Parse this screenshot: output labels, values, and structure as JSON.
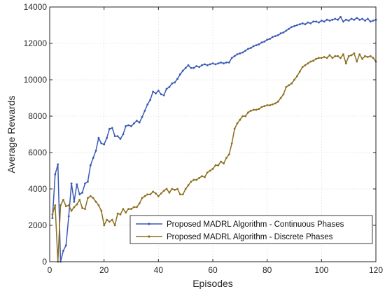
{
  "chart_data": {
    "type": "line",
    "title": "",
    "xlabel": "Episodes",
    "ylabel": "Average Rewards",
    "xlim": [
      0,
      120
    ],
    "ylim": [
      0,
      14000
    ],
    "xticks": [
      0,
      20,
      40,
      60,
      80,
      100,
      120
    ],
    "yticks": [
      0,
      2000,
      4000,
      6000,
      8000,
      10000,
      12000,
      14000
    ],
    "xtick_labels": [
      "0",
      "20",
      "40",
      "60",
      "80",
      "100",
      "120"
    ],
    "ytick_labels": [
      "0",
      "2000",
      "4000",
      "6000",
      "8000",
      "10000",
      "12000",
      "14000"
    ],
    "grid": true,
    "legend_position": "lower-right",
    "series": [
      {
        "name": "Proposed MADRL Algorithm - Continuous Phases",
        "color": "#3a59b4",
        "x": [
          1,
          2,
          3,
          4,
          5,
          6,
          7,
          8,
          9,
          10,
          11,
          12,
          13,
          14,
          15,
          16,
          17,
          18,
          19,
          20,
          21,
          22,
          23,
          24,
          25,
          26,
          27,
          28,
          29,
          30,
          31,
          32,
          33,
          34,
          35,
          36,
          37,
          38,
          39,
          40,
          41,
          42,
          43,
          44,
          45,
          46,
          47,
          48,
          49,
          50,
          51,
          52,
          53,
          54,
          55,
          56,
          57,
          58,
          59,
          60,
          61,
          62,
          63,
          64,
          65,
          66,
          67,
          68,
          69,
          70,
          71,
          72,
          73,
          74,
          75,
          76,
          77,
          78,
          79,
          80,
          81,
          82,
          83,
          84,
          85,
          86,
          87,
          88,
          89,
          90,
          91,
          92,
          93,
          94,
          95,
          96,
          97,
          98,
          99,
          100,
          101,
          102,
          103,
          104,
          105,
          106,
          107,
          108,
          109,
          110,
          111,
          112,
          113,
          114,
          115,
          116,
          117,
          118,
          119,
          120
        ],
        "y": [
          2400,
          4800,
          5350,
          0,
          600,
          900,
          2500,
          4300,
          3300,
          4250,
          3700,
          3800,
          4300,
          4400,
          5300,
          5700,
          6100,
          6800,
          6500,
          6450,
          6800,
          7300,
          7350,
          6900,
          6900,
          6750,
          7000,
          7450,
          7500,
          7450,
          7600,
          7750,
          7650,
          7950,
          8300,
          8650,
          8900,
          9350,
          9250,
          9400,
          9200,
          9150,
          9500,
          9600,
          9800,
          9850,
          10050,
          10300,
          10500,
          10650,
          10800,
          10650,
          10650,
          10750,
          10700,
          10800,
          10850,
          10800,
          10850,
          10900,
          10850,
          10900,
          10950,
          10900,
          10950,
          10950,
          11200,
          11300,
          11400,
          11450,
          11500,
          11600,
          11700,
          11750,
          11850,
          11900,
          11950,
          12050,
          12100,
          12200,
          12250,
          12350,
          12400,
          12450,
          12550,
          12600,
          12700,
          12800,
          12900,
          12950,
          13000,
          13050,
          13100,
          13050,
          13150,
          13100,
          13200,
          13200,
          13150,
          13250,
          13200,
          13300,
          13250,
          13300,
          13350,
          13300,
          13450,
          13200,
          13300,
          13250,
          13350,
          13300,
          13400,
          13300,
          13350,
          13250,
          13350,
          13200,
          13250,
          13300
        ]
      },
      {
        "name": "Proposed MADRL Algorithm - Discrete Phases",
        "color": "#8c6e1e",
        "x": [
          1,
          2,
          3,
          4,
          5,
          6,
          7,
          8,
          9,
          10,
          11,
          12,
          13,
          14,
          15,
          16,
          17,
          18,
          19,
          20,
          21,
          22,
          23,
          24,
          25,
          26,
          27,
          28,
          29,
          30,
          31,
          32,
          33,
          34,
          35,
          36,
          37,
          38,
          39,
          40,
          41,
          42,
          43,
          44,
          45,
          46,
          47,
          48,
          49,
          50,
          51,
          52,
          53,
          54,
          55,
          56,
          57,
          58,
          59,
          60,
          61,
          62,
          63,
          64,
          65,
          66,
          67,
          68,
          69,
          70,
          71,
          72,
          73,
          74,
          75,
          76,
          77,
          78,
          79,
          80,
          81,
          82,
          83,
          84,
          85,
          86,
          87,
          88,
          89,
          90,
          91,
          92,
          93,
          94,
          95,
          96,
          97,
          98,
          99,
          100,
          101,
          102,
          103,
          104,
          105,
          106,
          107,
          108,
          109,
          110,
          111,
          112,
          113,
          114,
          115,
          116,
          117,
          118,
          119,
          120
        ],
        "y": [
          2600,
          3100,
          0,
          3100,
          3400,
          3050,
          3100,
          2800,
          3000,
          3150,
          3400,
          2950,
          2900,
          3500,
          3600,
          3500,
          3300,
          3100,
          2800,
          2000,
          2300,
          2200,
          2300,
          2000,
          2650,
          2600,
          2900,
          2700,
          2900,
          2900,
          3000,
          3000,
          3200,
          3500,
          3600,
          3700,
          3700,
          3850,
          3750,
          3600,
          3750,
          3900,
          4000,
          3800,
          4000,
          3950,
          4000,
          3700,
          3700,
          4000,
          4200,
          4400,
          4500,
          4500,
          4600,
          4700,
          4650,
          4900,
          5000,
          5100,
          5300,
          5300,
          5500,
          5400,
          5700,
          5900,
          6500,
          7300,
          7600,
          7800,
          8000,
          8000,
          8200,
          8300,
          8350,
          8350,
          8400,
          8500,
          8550,
          8600,
          8600,
          8650,
          8700,
          8800,
          9000,
          9200,
          9600,
          9700,
          9800,
          10000,
          10200,
          10450,
          10700,
          10800,
          10900,
          11000,
          11050,
          11150,
          11200,
          11200,
          11250,
          11200,
          11350,
          11200,
          11300,
          11300,
          11200,
          11400,
          10900,
          11300,
          11350,
          11450,
          11000,
          11400,
          11150,
          11300,
          11250,
          11300,
          11200,
          11000
        ]
      }
    ]
  }
}
